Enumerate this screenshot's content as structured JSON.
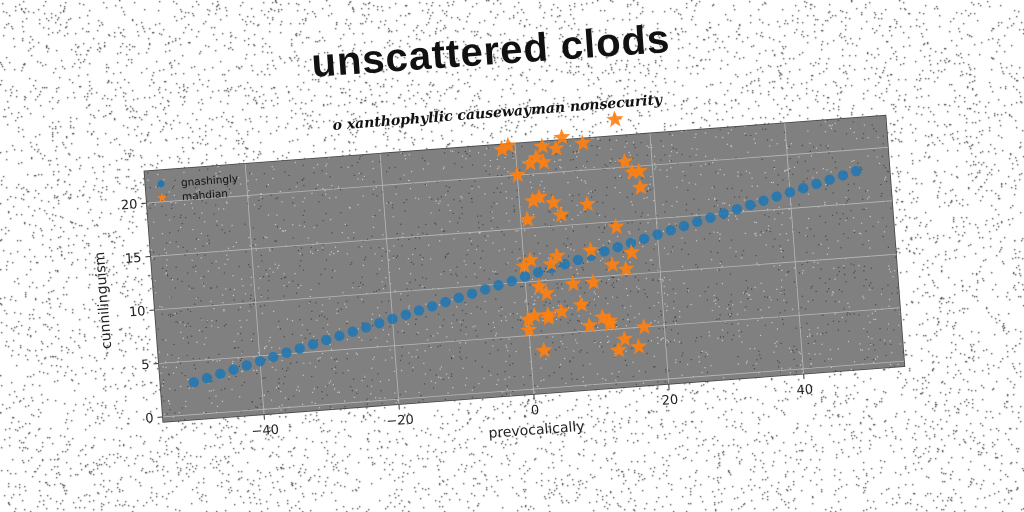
{
  "chart_data": {
    "type": "scatter",
    "title": "unscattered clods",
    "subtitle": "o xanthophyllic causewayman nonsecurity",
    "xlabel": "prevocalically",
    "ylabel": "cunnilinguism",
    "xlim": [
      -55,
      55
    ],
    "ylim": [
      -0.5,
      23
    ],
    "xticks": [
      -40,
      -20,
      0,
      20,
      40
    ],
    "yticks": [
      0,
      5,
      10,
      15,
      20
    ],
    "grid": true,
    "legend_position": "top-left",
    "colors": {
      "plot_bg": "#808080",
      "series1": "#1f77b4",
      "series2": "#ff7f0e"
    },
    "series": [
      {
        "name": "gnashingly",
        "marker": "circle",
        "x": [
          -50,
          -48,
          -46,
          -44,
          -42,
          -40,
          -38,
          -36,
          -34,
          -32,
          -30,
          -28,
          -26,
          -24,
          -22,
          -20,
          -18,
          -16,
          -14,
          -12,
          -10,
          -8,
          -6,
          -4,
          -2,
          0,
          2,
          4,
          6,
          8,
          10,
          12,
          14,
          16,
          18,
          20,
          22,
          24,
          26,
          28,
          30,
          32,
          34,
          36,
          38,
          40,
          42,
          44,
          46,
          48,
          50
        ],
        "y": [
          3.0,
          3.3,
          3.6,
          3.9,
          4.2,
          4.5,
          4.8,
          5.1,
          5.4,
          5.7,
          6.0,
          6.3,
          6.6,
          6.9,
          7.2,
          7.5,
          7.8,
          8.1,
          8.4,
          8.7,
          9.0,
          9.3,
          9.6,
          9.9,
          10.2,
          10.5,
          10.8,
          11.1,
          11.4,
          11.7,
          12.0,
          12.3,
          12.6,
          12.9,
          13.2,
          13.5,
          13.8,
          14.1,
          14.4,
          14.7,
          15.0,
          15.3,
          15.6,
          15.9,
          16.2,
          16.5,
          16.8,
          17.1,
          17.4,
          17.7,
          18.0
        ]
      },
      {
        "name": "mahdian",
        "marker": "star",
        "x": [
          -2,
          -1,
          0,
          2,
          3,
          4,
          7,
          10,
          15,
          16,
          17,
          2,
          3,
          5,
          6,
          10,
          14,
          18,
          1,
          4,
          5,
          10,
          13,
          15,
          16,
          0,
          2,
          3,
          7,
          10,
          12,
          14,
          0,
          1,
          3,
          5,
          8,
          12,
          17,
          0,
          2,
          3,
          9,
          11,
          13,
          16,
          18,
          1,
          4,
          6
        ],
        "y": [
          22.5,
          22.8,
          20,
          21,
          21.5,
          22.5,
          23.2,
          22.5,
          24.5,
          20.5,
          19.5,
          17.5,
          17.8,
          17.2,
          16,
          16.8,
          14.5,
          18,
          12,
          11.5,
          12.2,
          12.5,
          11,
          10.5,
          12,
          11.5,
          9.5,
          8.8,
          9.5,
          9.5,
          5.5,
          4,
          6.5,
          6.8,
          6.5,
          7,
          7.5,
          5.8,
          5,
          5.5,
          3.5,
          6.8,
          5.5,
          6.2,
          3,
          3.2,
          19.5,
          15.8,
          21,
          22.2
        ]
      }
    ]
  }
}
